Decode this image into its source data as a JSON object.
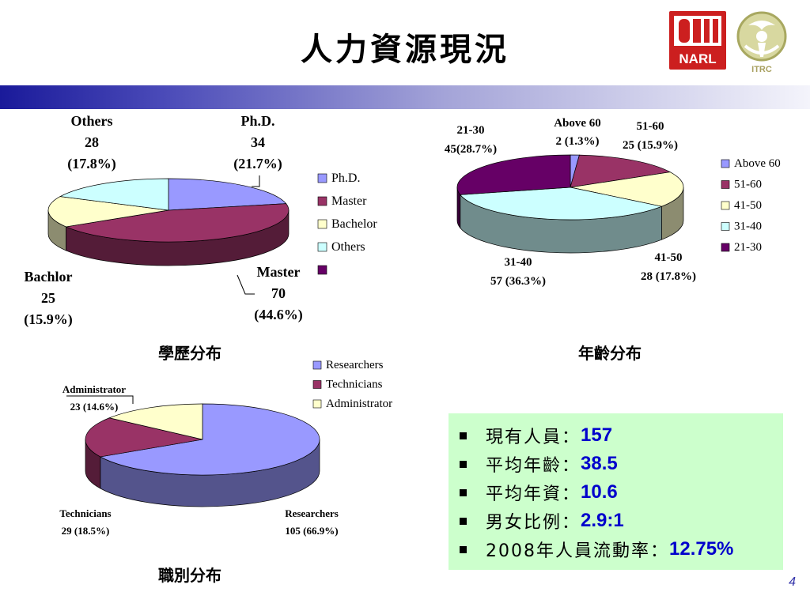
{
  "page": {
    "title": "人力資源現況",
    "page_number": "4"
  },
  "logos": {
    "narl_text": "NARL",
    "itrc_text": "ITRC"
  },
  "captions": {
    "education": "學歷分布",
    "age": "年齡分布",
    "position": "職別分布"
  },
  "summary": [
    {
      "label": "現有人員：",
      "value": "157"
    },
    {
      "label": "平均年齡：",
      "value": "38.5"
    },
    {
      "label": "平均年資：",
      "value": "10.6"
    },
    {
      "label": "男女比例：",
      "value": "2.9:1"
    },
    {
      "label": "2008年人員流動率：",
      "value": "12.75%"
    }
  ],
  "chart_data": [
    {
      "type": "pie",
      "title": "學歷分布",
      "categories": [
        "Ph.D.",
        "Master",
        "Bachelor",
        "Others"
      ],
      "values": [
        34,
        70,
        25,
        28
      ],
      "percents": [
        "21.7%",
        "44.6%",
        "15.9%",
        "17.8%"
      ],
      "colors": [
        "#9999ff",
        "#993366",
        "#ffffcc",
        "#ccffff"
      ],
      "legend": [
        "Ph.D.",
        "Master",
        "Bachelor",
        "Others",
        ""
      ],
      "legend_colors": [
        "#9999ff",
        "#993366",
        "#ffffcc",
        "#ccffff",
        "#660066"
      ],
      "legend_position": "right",
      "data_labels": [
        [
          "Ph.D.",
          "34",
          "(21.7%)"
        ],
        [
          "Master",
          "70",
          "(44.6%)"
        ],
        [
          "Bachlor",
          "25",
          "(15.9%)"
        ],
        [
          "Others",
          "28",
          "(17.8%)"
        ]
      ]
    },
    {
      "type": "pie",
      "title": "年齡分布",
      "categories": [
        "Above 60",
        "51-60",
        "41-50",
        "31-40",
        "21-30"
      ],
      "values": [
        2,
        25,
        28,
        57,
        45
      ],
      "percents": [
        "1.3%",
        "15.9%",
        "17.8%",
        "36.3%",
        "28.7%"
      ],
      "colors": [
        "#9999ff",
        "#993366",
        "#ffffcc",
        "#ccffff",
        "#660066"
      ],
      "legend_position": "right",
      "data_labels": [
        [
          "Above 60",
          "2 (1.3%)"
        ],
        [
          "51-60",
          "25 (15.9%)"
        ],
        [
          "41-50",
          "28 (17.8%)"
        ],
        [
          "31-40",
          "57 (36.3%)"
        ],
        [
          "21-30",
          "45(28.7%)"
        ]
      ]
    },
    {
      "type": "pie",
      "title": "職別分布",
      "categories": [
        "Researchers",
        "Technicians",
        "Administrator"
      ],
      "values": [
        105,
        29,
        23
      ],
      "percents": [
        "66.9%",
        "18.5%",
        "14.6%"
      ],
      "colors": [
        "#9999ff",
        "#993366",
        "#ffffcc"
      ],
      "legend_position": "top-right",
      "data_labels": [
        [
          "Researchers",
          "105 (66.9%)"
        ],
        [
          "Technicians",
          "29 (18.5%)"
        ],
        [
          "Administrator",
          "23 (14.6%)"
        ]
      ]
    }
  ]
}
